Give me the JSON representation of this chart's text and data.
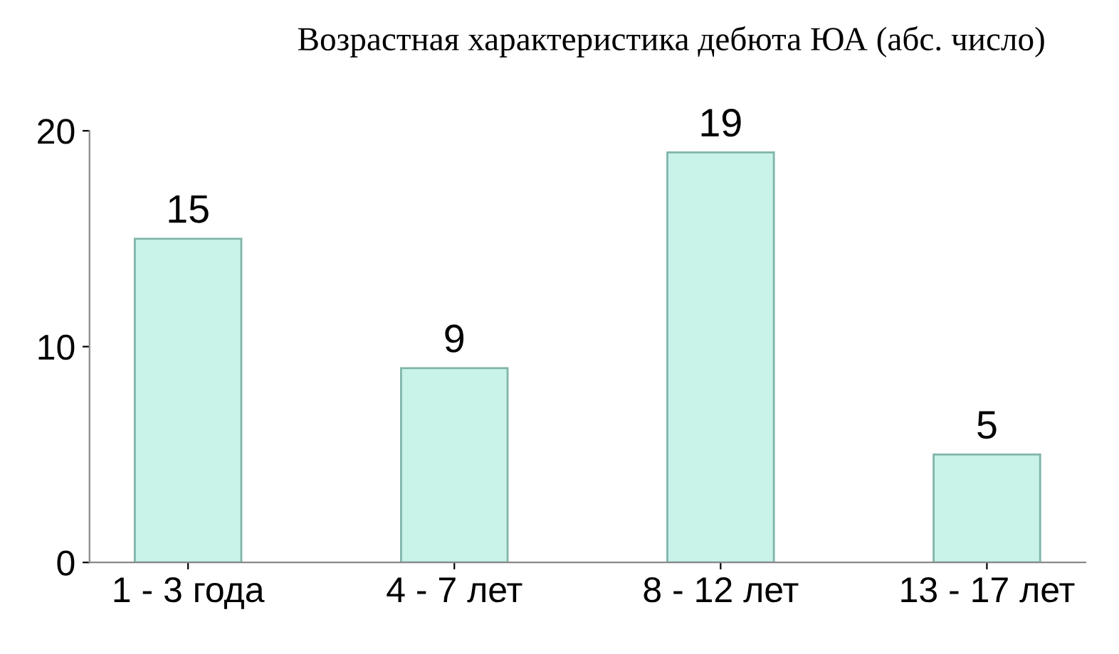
{
  "chart_data": {
    "type": "bar",
    "title": "Возрастная характеристика дебюта ЮА (абс. число)",
    "categories": [
      "1 - 3 года",
      "4 - 7 лет",
      "8 - 12 лет",
      "13 - 17 лет"
    ],
    "values": [
      15,
      9,
      19,
      5
    ],
    "color": "#c9f2e9",
    "ylim": [
      0,
      20
    ],
    "yticks": [
      0,
      10,
      20
    ],
    "grid": false,
    "data_labels": true
  }
}
